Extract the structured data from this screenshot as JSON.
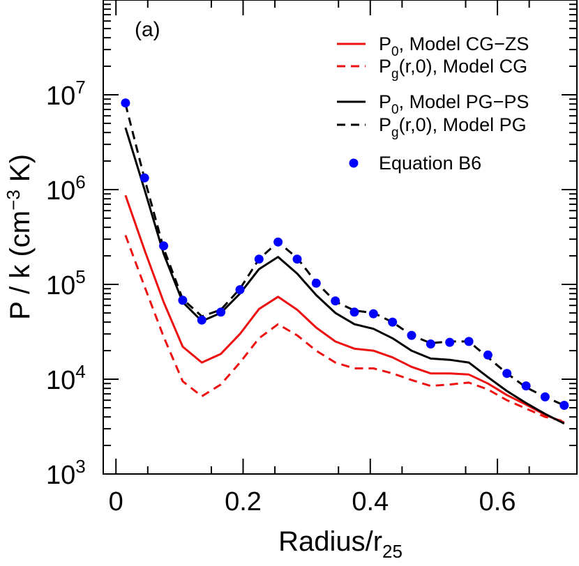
{
  "chart_data": {
    "type": "line",
    "panel_label": "(a)",
    "xlabel": {
      "main": "Radius/r",
      "sub": "25"
    },
    "ylabel": {
      "main": "P / k (cm",
      "sup": "−3",
      "tail": " K)"
    },
    "xlim": [
      -0.02,
      0.725
    ],
    "ylim_log10": [
      3,
      8
    ],
    "y_scale": "log",
    "grid": false,
    "legend_position": "top-right",
    "x_ticks": [
      {
        "value": 0,
        "label": "0"
      },
      {
        "value": 0.2,
        "label": "0.2"
      },
      {
        "value": 0.4,
        "label": "0.4"
      },
      {
        "value": 0.6,
        "label": "0.6"
      }
    ],
    "y_ticks": [
      {
        "exp": 3,
        "base": "10",
        "sup": "3"
      },
      {
        "exp": 4,
        "base": "10",
        "sup": "4"
      },
      {
        "exp": 5,
        "base": "10",
        "sup": "5"
      },
      {
        "exp": 6,
        "base": "10",
        "sup": "6"
      },
      {
        "exp": 7,
        "base": "10",
        "sup": "7"
      }
    ],
    "x": [
      0.015,
      0.045,
      0.075,
      0.105,
      0.135,
      0.165,
      0.195,
      0.225,
      0.255,
      0.285,
      0.315,
      0.345,
      0.375,
      0.405,
      0.435,
      0.465,
      0.495,
      0.525,
      0.555,
      0.585,
      0.615,
      0.645,
      0.675,
      0.705
    ],
    "series": [
      {
        "id": "p0-cg-zs",
        "legend": {
          "pre": "P",
          "sub": "0",
          "post": ", Model CG−ZS"
        },
        "color": "#ee1111",
        "dash": "solid",
        "marker": "none",
        "values": [
          870000,
          230000,
          65000,
          22000,
          15000,
          18500,
          30000,
          55000,
          74000,
          54000,
          35000,
          25000,
          21000,
          20000,
          17000,
          13500,
          11500,
          11500,
          11200,
          9000,
          6800,
          5400,
          4200,
          3500
        ]
      },
      {
        "id": "pg-cg",
        "legend": {
          "pre": "P",
          "sub": "g",
          "post": "(r,0), Model CG"
        },
        "color": "#ee1111",
        "dash": "dashed",
        "marker": "none",
        "values": [
          330000,
          95000,
          28000,
          9500,
          6600,
          8800,
          15000,
          27000,
          38000,
          29000,
          20000,
          15000,
          13000,
          13000,
          11500,
          9800,
          8500,
          8800,
          9200,
          7800,
          6000,
          4900,
          4000,
          3600
        ]
      },
      {
        "id": "p0-pg-ps",
        "legend": {
          "pre": "P",
          "sub": "0",
          "post": ", Model PG−PS"
        },
        "color": "#000000",
        "dash": "solid",
        "marker": "none",
        "values": [
          4500000,
          1000000,
          210000,
          65000,
          41000,
          50000,
          80000,
          145000,
          195000,
          130000,
          77000,
          50000,
          38000,
          34000,
          27000,
          20000,
          16500,
          16000,
          15000,
          10500,
          7500,
          5600,
          4300,
          3400
        ]
      },
      {
        "id": "pg-pg",
        "legend": {
          "pre": "P",
          "sub": "g",
          "post": "(r,0), Model PG"
        },
        "color": "#000000",
        "dash": "dashed",
        "marker": "none",
        "values": [
          8000000,
          1300000,
          240000,
          70000,
          46000,
          54000,
          90000,
          185000,
          280000,
          190000,
          105000,
          66000,
          53000,
          50000,
          40000,
          29000,
          24000,
          25000,
          25000,
          17000,
          11500,
          8200,
          6500,
          5300
        ]
      },
      {
        "id": "eq-b6",
        "legend": {
          "pre": "Equation B6",
          "sub": "",
          "post": ""
        },
        "color": "#0000ff",
        "dash": "none",
        "marker": "circle",
        "values": [
          8200000,
          1330000,
          255000,
          68000,
          42000,
          51000,
          88000,
          185000,
          280000,
          185000,
          103000,
          67000,
          51000,
          49000,
          40000,
          29000,
          23500,
          24500,
          25000,
          18000,
          11500,
          8500,
          6500,
          5300
        ]
      }
    ]
  }
}
